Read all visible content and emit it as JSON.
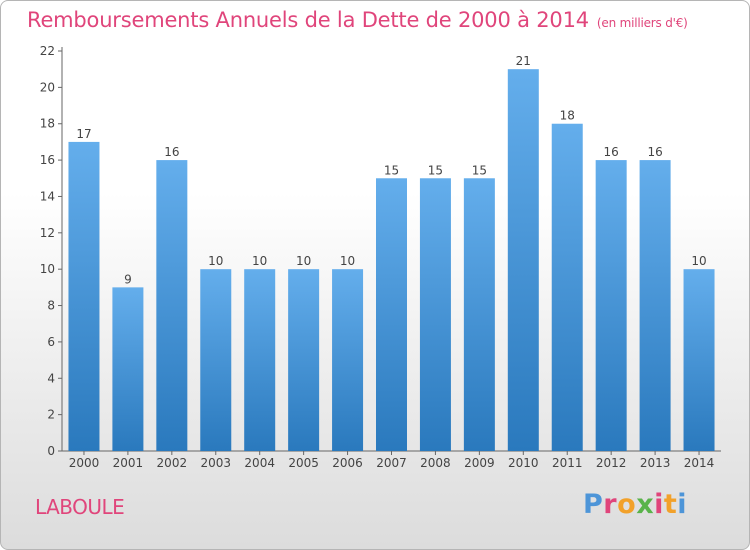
{
  "title": "Remboursements Annuels de la Dette de 2000 à 2014",
  "unit": "(en milliers d'€)",
  "commune": "LABOULE",
  "logo": {
    "text": "Proxiti",
    "colors": [
      "#4d95d8",
      "#e0457b",
      "#f2a12a",
      "#59b34a",
      "#e0457b",
      "#f2a12a",
      "#4d95d8"
    ]
  },
  "colors": {
    "bar_top": "#64aeec",
    "bar_bottom": "#2a79bd",
    "title": "#e0457b"
  },
  "chart_data": {
    "type": "bar",
    "categories": [
      "2000",
      "2001",
      "2002",
      "2003",
      "2004",
      "2005",
      "2006",
      "2007",
      "2008",
      "2009",
      "2010",
      "2011",
      "2012",
      "2013",
      "2014"
    ],
    "values": [
      17,
      9,
      16,
      10,
      10,
      10,
      10,
      15,
      15,
      15,
      21,
      18,
      16,
      16,
      10
    ],
    "data_labels": [
      "17",
      "9",
      "16",
      "10",
      "10",
      "10",
      "10",
      "15",
      "15",
      "15",
      "21",
      "18",
      "16",
      "16",
      "10"
    ],
    "yticks": [
      "0",
      "2",
      "4",
      "6",
      "8",
      "10",
      "12",
      "14",
      "16",
      "18",
      "20",
      "22"
    ],
    "ylim": [
      0,
      22
    ],
    "grid": false
  }
}
